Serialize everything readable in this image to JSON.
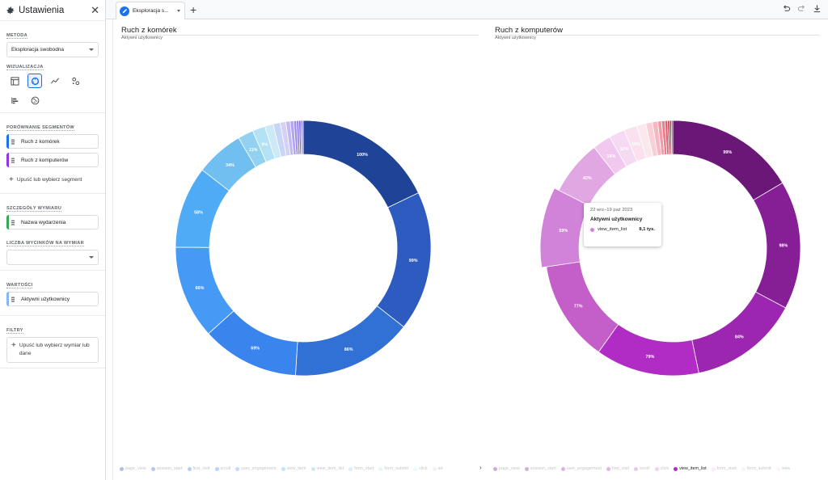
{
  "sidebar": {
    "title": "Ustawienia",
    "method_label": "METODA",
    "method_value": "Eksploracja swobodna",
    "viz_label": "WIZUALIZACJA",
    "segments_label": "PORÓWNANIE SEGMENTÓW",
    "segments": [
      {
        "label": "Ruch z komórek",
        "color": "#1a73e8"
      },
      {
        "label": "Ruch z komputerów",
        "color": "#9334e6"
      }
    ],
    "segment_drop": "Upuść lub wybierz segment",
    "dims_label": "SZCZEGÓŁY WYMIARU",
    "dimension": {
      "label": "Nazwa wydarzenia",
      "color": "#34a853"
    },
    "slices_label": "LICZBA WYCINKÓW NA WYMIAR",
    "slices_value": "",
    "values_label": "WARTOŚCI",
    "metric": {
      "label": "Aktywni użytkownicy",
      "color": "#8ab4f8"
    },
    "filters_label": "FILTRY",
    "filter_drop": "Upuść lub wybierz wymiar lub dane"
  },
  "tabs": {
    "active_label": "Eksploracja s..."
  },
  "tooltip": {
    "date": "22 wrz–19 paź 2023",
    "metric": "Aktywni użytkownicy",
    "item": "view_item_list",
    "value": "8,1 tys.",
    "color": "#d083d8"
  },
  "legend_1": [
    "page_view",
    "session_start",
    "first_visit",
    "scroll",
    "user_engagement",
    "view_item",
    "view_item_list",
    "form_start",
    "form_submit",
    "click",
    "ad"
  ],
  "legend_2": [
    "page_view",
    "session_start",
    "user_engagement",
    "first_visit",
    "scroll",
    "click",
    "view_item_list",
    "form_start",
    "form_submit",
    "view"
  ],
  "legend_2_highlight": "view_item_list",
  "chart_data": [
    {
      "type": "pie",
      "title": "Ruch z komórek",
      "subtitle": "Aktywni użytkownicy",
      "slices": [
        {
          "label": "100%",
          "value": 100
        },
        {
          "label": "99%",
          "value": 99
        },
        {
          "label": "86%",
          "value": 86
        },
        {
          "label": "69%",
          "value": 69
        },
        {
          "label": "66%",
          "value": 66
        },
        {
          "label": "58%",
          "value": 58
        },
        {
          "label": "34%",
          "value": 34
        },
        {
          "label": "11%",
          "value": 11
        },
        {
          "label": "9%",
          "value": 9
        },
        {
          "label": "",
          "value": 6
        },
        {
          "label": "",
          "value": 5
        },
        {
          "label": "",
          "value": 4
        },
        {
          "label": "",
          "value": 3
        },
        {
          "label": "",
          "value": 2.5
        },
        {
          "label": "",
          "value": 2
        },
        {
          "label": "",
          "value": 1.6
        },
        {
          "label": "",
          "value": 1.3
        },
        {
          "label": "",
          "value": 1
        },
        {
          "label": "",
          "value": 0.8
        }
      ],
      "colors": [
        "#1f4397",
        "#2d5bbf",
        "#3170d4",
        "#3a84ed",
        "#449af5",
        "#50abf7",
        "#70bff0",
        "#93d1f0",
        "#b3e2f4",
        "#cce9f8",
        "#c9d5f5",
        "#d4d0f6",
        "#c3b8f2",
        "#b2a5ee",
        "#9f8ee8",
        "#8a77e0",
        "#7560d6",
        "#5f4ac9",
        "#4b37b6"
      ],
      "legend": "bottom"
    },
    {
      "type": "pie",
      "title": "Ruch z komputerów",
      "subtitle": "Aktywni użytkownicy",
      "slices": [
        {
          "label": "99%",
          "value": 99
        },
        {
          "label": "98%",
          "value": 98
        },
        {
          "label": "84%",
          "value": 84
        },
        {
          "label": "79%",
          "value": 79
        },
        {
          "label": "77%",
          "value": 77
        },
        {
          "label": "59%",
          "value": 59
        },
        {
          "label": "42%",
          "value": 42
        },
        {
          "label": "14%",
          "value": 14
        },
        {
          "label": "12%",
          "value": 12
        },
        {
          "label": "10%",
          "value": 10
        },
        {
          "label": "",
          "value": 7
        },
        {
          "label": "",
          "value": 5
        },
        {
          "label": "",
          "value": 4
        },
        {
          "label": "",
          "value": 3
        },
        {
          "label": "",
          "value": 2.5
        },
        {
          "label": "",
          "value": 2
        },
        {
          "label": "",
          "value": 1.6
        },
        {
          "label": "",
          "value": 1.3
        },
        {
          "label": "",
          "value": 1
        }
      ],
      "colors": [
        "#6a1777",
        "#861f96",
        "#9d26b0",
        "#b02cc4",
        "#c45ec8",
        "#d083d8",
        "#e0a7e2",
        "#f0c8f0",
        "#f6d9f2",
        "#f9e1f0",
        "#fbe7ee",
        "#f9d0d8",
        "#f5b8c2",
        "#f09ca8",
        "#ea7d8c",
        "#e25c6e",
        "#d83a4f",
        "#cc2233",
        "#b81624"
      ],
      "legend": "bottom"
    }
  ]
}
